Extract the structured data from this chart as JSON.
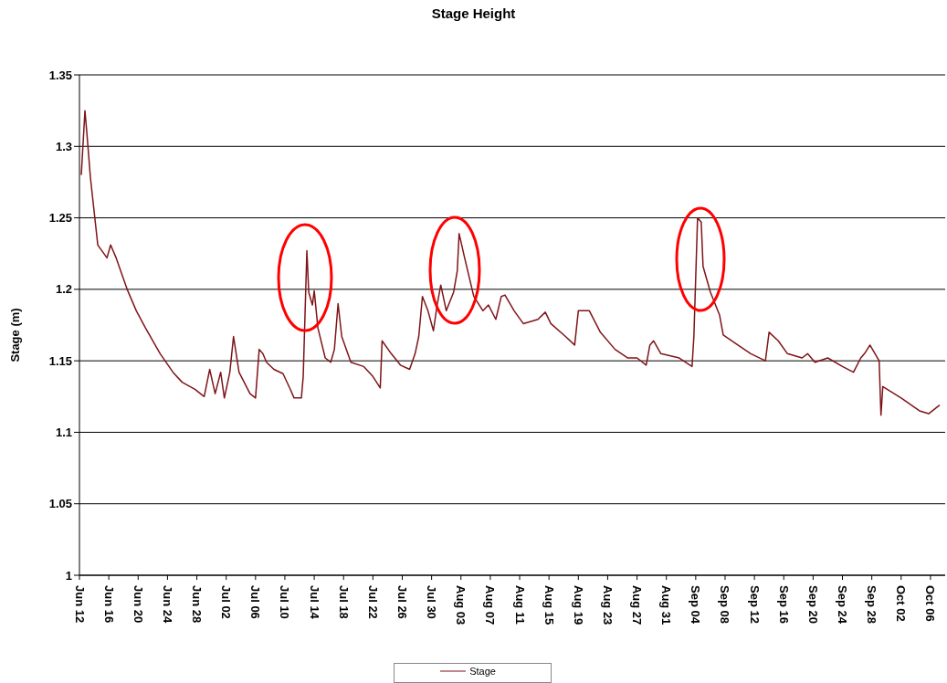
{
  "chart_data": {
    "type": "line",
    "title": "Stage Height",
    "ylabel": "Stage (m)",
    "xlim": [
      "--06-12",
      "--10-08"
    ],
    "xticks": [
      {
        "value": "--06-12",
        "label": "Jun 12"
      },
      {
        "value": "--06-16",
        "label": "Jun 16"
      },
      {
        "value": "--06-20",
        "label": "Jun 20"
      },
      {
        "value": "--06-24",
        "label": "Jun 24"
      },
      {
        "value": "--06-28",
        "label": "Jun 28"
      },
      {
        "value": "--07-02",
        "label": "Jul 02"
      },
      {
        "value": "--07-06",
        "label": "Jul 06"
      },
      {
        "value": "--07-10",
        "label": "Jul 10"
      },
      {
        "value": "--07-14",
        "label": "Jul 14"
      },
      {
        "value": "--07-18",
        "label": "Jul 18"
      },
      {
        "value": "--07-22",
        "label": "Jul 22"
      },
      {
        "value": "--07-26",
        "label": "Jul 26"
      },
      {
        "value": "--07-30",
        "label": "Jul 30"
      },
      {
        "value": "--08-03",
        "label": "Aug 03"
      },
      {
        "value": "--08-07",
        "label": "Aug 07"
      },
      {
        "value": "--08-11",
        "label": "Aug 11"
      },
      {
        "value": "--08-15",
        "label": "Aug 15"
      },
      {
        "value": "--08-19",
        "label": "Aug 19"
      },
      {
        "value": "--08-23",
        "label": "Aug 23"
      },
      {
        "value": "--08-27",
        "label": "Aug 27"
      },
      {
        "value": "--08-31",
        "label": "Aug 31"
      },
      {
        "value": "--09-04",
        "label": "Sep 04"
      },
      {
        "value": "--09-08",
        "label": "Sep 08"
      },
      {
        "value": "--09-12",
        "label": "Sep 12"
      },
      {
        "value": "--09-16",
        "label": "Sep 16"
      },
      {
        "value": "--09-20",
        "label": "Sep 20"
      },
      {
        "value": "--09-24",
        "label": "Sep 24"
      },
      {
        "value": "--09-28",
        "label": "Sep 28"
      },
      {
        "value": "--10-02",
        "label": "Oct 02"
      },
      {
        "value": "--10-06",
        "label": "Oct 06"
      }
    ],
    "ylim": [
      1,
      1.35
    ],
    "yticks": [
      1,
      1.05,
      1.1,
      1.15,
      1.2,
      1.25,
      1.3,
      1.35
    ],
    "grid": "y",
    "legend": "bottom",
    "series": [
      {
        "name": "Stage",
        "color": "#7f1418",
        "x": [
          "--06-12T06:00",
          "--06-12T18:00",
          "--06-13T00:00",
          "--06-13T12:00",
          "--06-14T12:00",
          "--06-15T18:00",
          "--06-16T06:00",
          "--06-17T00:00",
          "--06-18T12:00",
          "--06-19T18:00",
          "--06-21T00:00",
          "--06-23T00:00",
          "--06-24T18:00",
          "--06-26T00:00",
          "--06-27T18:00",
          "--06-29T00:00",
          "--06-29T18:00",
          "--06-30T12:00",
          "--07-01T06:00",
          "--07-01T18:00",
          "--07-02T12:00",
          "--07-03T00:00",
          "--07-03T18:00",
          "--07-05T06:00",
          "--07-06T00:00",
          "--07-06T12:00",
          "--07-07T00:00",
          "--07-07T12:00",
          "--07-08T12:00",
          "--07-09T18:00",
          "--07-10T18:00",
          "--07-11T06:00",
          "--07-12T06:00",
          "--07-12T12:00",
          "--07-13T00:00",
          "--07-13T06:00",
          "--07-13T18:00",
          "--07-14T00:00",
          "--07-14T12:00",
          "--07-15T12:00",
          "--07-16T06:00",
          "--07-16T18:00",
          "--07-17T06:00",
          "--07-17T18:00",
          "--07-19T00:00",
          "--07-20T18:00",
          "--07-22T00:00",
          "--07-23T00:00",
          "--07-23T06:00",
          "--07-24T12:00",
          "--07-25T18:00",
          "--07-27T00:00",
          "--07-27T18:00",
          "--07-28T06:00",
          "--07-28T18:00",
          "--07-29T12:00",
          "--07-30T06:00",
          "--07-30T18:00",
          "--07-31T06:00",
          "--08-01T00:00",
          "--08-02T00:00",
          "--08-02T12:00",
          "--08-02T18:00",
          "--08-03T12:00",
          "--08-04T18:00",
          "--08-06T00:00",
          "--08-06T18:00",
          "--08-07T18:00",
          "--08-08T12:00",
          "--08-09T00:00",
          "--08-10T06:00",
          "--08-11T12:00",
          "--08-13T12:00",
          "--08-14T12:00",
          "--08-15T06:00",
          "--08-17T06:00",
          "--08-18T12:00",
          "--08-19T00:00",
          "--08-20T12:00",
          "--08-22T00:00",
          "--08-24T00:00",
          "--08-25T18:00",
          "--08-27T00:00",
          "--08-28T06:00",
          "--08-28T18:00",
          "--08-29T06:00",
          "--08-30T06:00",
          "--09-01T18:00",
          "--09-03T12:00",
          "--09-03T18:00",
          "--09-04T06:00",
          "--09-04T18:00",
          "--09-05T00:00",
          "--09-06T00:00",
          "--09-07T06:00",
          "--09-07T18:00",
          "--09-09T18:00",
          "--09-11T12:00",
          "--09-13T12:00",
          "--09-14T00:00",
          "--09-15T06:00",
          "--09-16T12:00",
          "--09-18T12:00",
          "--09-19T06:00",
          "--09-20T06:00",
          "--09-22T00:00",
          "--09-24T00:00",
          "--09-25T12:00",
          "--09-26T12:00",
          "--09-27T00:00",
          "--09-27T18:00",
          "--09-29T00:00",
          "--09-29T06:00",
          "--09-29T12:00",
          "--10-02T00:00",
          "--10-04T12:00",
          "--10-05T18:00",
          "--10-07T06:00"
        ],
        "values": [
          1.28,
          1.325,
          1.31,
          1.278,
          1.231,
          1.222,
          1.231,
          1.222,
          1.2,
          1.185,
          1.173,
          1.155,
          1.142,
          1.135,
          1.13,
          1.125,
          1.144,
          1.127,
          1.142,
          1.124,
          1.142,
          1.167,
          1.142,
          1.127,
          1.124,
          1.158,
          1.155,
          1.149,
          1.144,
          1.141,
          1.13,
          1.124,
          1.124,
          1.139,
          1.227,
          1.198,
          1.189,
          1.199,
          1.173,
          1.152,
          1.149,
          1.158,
          1.19,
          1.167,
          1.149,
          1.146,
          1.139,
          1.131,
          1.164,
          1.155,
          1.147,
          1.144,
          1.155,
          1.167,
          1.195,
          1.185,
          1.171,
          1.189,
          1.203,
          1.185,
          1.198,
          1.213,
          1.239,
          1.222,
          1.195,
          1.185,
          1.189,
          1.179,
          1.195,
          1.196,
          1.185,
          1.176,
          1.179,
          1.184,
          1.176,
          1.167,
          1.161,
          1.185,
          1.185,
          1.17,
          1.158,
          1.152,
          1.152,
          1.147,
          1.161,
          1.164,
          1.155,
          1.152,
          1.146,
          1.167,
          1.25,
          1.247,
          1.216,
          1.198,
          1.182,
          1.168,
          1.161,
          1.155,
          1.15,
          1.17,
          1.164,
          1.155,
          1.152,
          1.155,
          1.149,
          1.152,
          1.146,
          1.142,
          1.152,
          1.155,
          1.161,
          1.15,
          1.112,
          1.132,
          1.124,
          1.115,
          1.113,
          1.119
        ]
      }
    ]
  }
}
